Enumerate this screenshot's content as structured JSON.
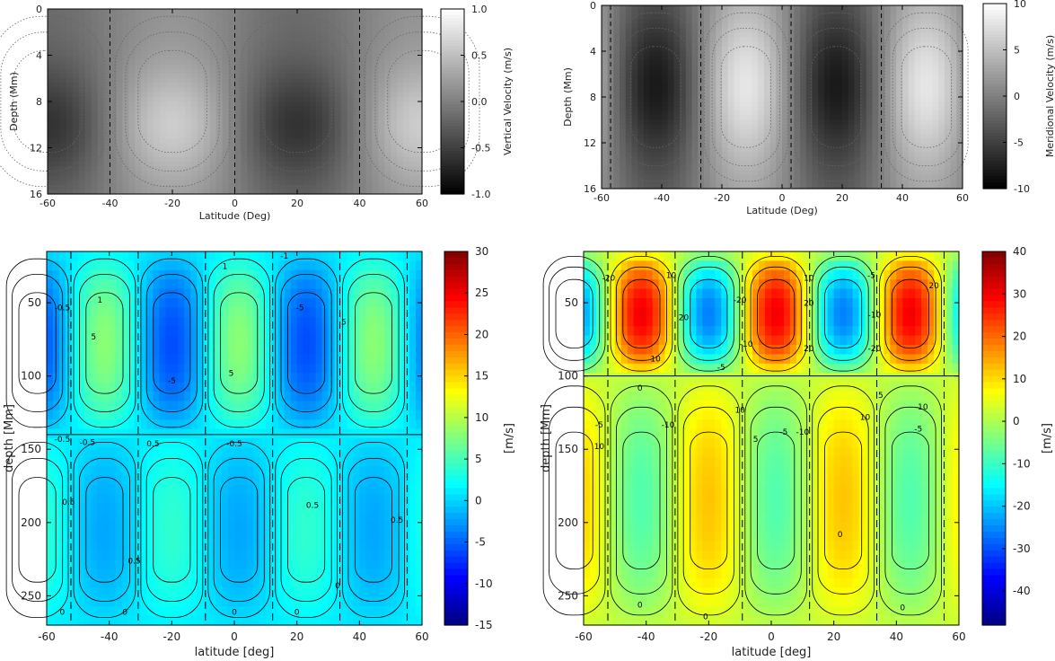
{
  "chart_data": [
    {
      "id": "A",
      "type": "heatmap",
      "colormap": "grayscale",
      "xlabel": "Latitude (Deg)",
      "ylabel": "Depth (Mm)",
      "xlim": [
        -60,
        60
      ],
      "ylim": [
        0,
        16
      ],
      "y_inverted": true,
      "xticks": [
        "-60",
        "-40",
        "-20",
        "0",
        "20",
        "40",
        "60"
      ],
      "yticks": [
        "0",
        "4",
        "8",
        "12",
        "16"
      ],
      "colorbar": {
        "label": "Vertical Velocity (m/s)",
        "range": [
          -1.0,
          1.0
        ],
        "ticks": [
          "1.0",
          "0.5",
          "0.0",
          "-0.5",
          "-1.0"
        ]
      },
      "field": {
        "lat_period": 40,
        "lat_phase": -20,
        "depth_peak": 10,
        "depth_width": 5,
        "amplitude": 0.6
      },
      "contour_labels": []
    },
    {
      "id": "B",
      "type": "heatmap",
      "colormap": "grayscale",
      "xlabel": "Latitude (Deg)",
      "ylabel": "Depth (Mm)",
      "xlim": [
        -60,
        60
      ],
      "ylim": [
        0,
        16
      ],
      "y_inverted": true,
      "xticks": [
        "-60",
        "-40",
        "-20",
        "0",
        "20",
        "40",
        "60"
      ],
      "yticks": [
        "0",
        "4",
        "8",
        "12",
        "16"
      ],
      "colorbar": {
        "label": "Meridional Velocity (m/s)",
        "range": [
          -10,
          10
        ],
        "ticks": [
          "10",
          "5",
          "0",
          "-5",
          "-10"
        ]
      },
      "field": {
        "lat_period": 30,
        "lat_phase": -12,
        "depth_peak": 7,
        "depth_width": 7,
        "amplitude": 8
      },
      "contour_labels": []
    },
    {
      "id": "C",
      "type": "heatmap",
      "colormap": "jet",
      "xlabel": "latitude [deg]",
      "ylabel": "depth [Mm]",
      "xlim": [
        -60,
        60
      ],
      "ylim": [
        15,
        270
      ],
      "y_inverted": true,
      "xticks": [
        "-60",
        "-40",
        "-20",
        "0",
        "20",
        "40",
        "60"
      ],
      "yticks": [
        "50",
        "100",
        "150",
        "200",
        "250"
      ],
      "colorbar": {
        "label": "[m/s]",
        "range": [
          -15,
          30
        ],
        "ticks": [
          "30",
          "25",
          "20",
          "15",
          "10",
          "5",
          "0",
          "-5",
          "-10",
          "-15"
        ]
      },
      "field": {
        "lat_period": 21.5,
        "lat_phase": -20,
        "depth_split": 140,
        "upper_amp": 7,
        "lower_amp": 3,
        "offset": 1
      },
      "contour_labels": [
        {
          "lon": -43,
          "depth": 50,
          "text": "1"
        },
        {
          "lon": -3,
          "depth": 27,
          "text": "1"
        },
        {
          "lon": -45,
          "depth": 75,
          "text": "5"
        },
        {
          "lon": -1,
          "depth": 100,
          "text": "5"
        },
        {
          "lon": 35,
          "depth": 65,
          "text": "5"
        },
        {
          "lon": -20,
          "depth": 105,
          "text": "-5"
        },
        {
          "lon": 21,
          "depth": 55,
          "text": "-5"
        },
        {
          "lon": -55,
          "depth": 55,
          "text": "-0.5"
        },
        {
          "lon": 16,
          "depth": 20,
          "text": "-1"
        },
        {
          "lon": -55,
          "depth": 145,
          "text": "-0.5"
        },
        {
          "lon": -47,
          "depth": 147,
          "text": "-0.5"
        },
        {
          "lon": -26,
          "depth": 148,
          "text": "0.5"
        },
        {
          "lon": 0,
          "depth": 148,
          "text": "-0.5"
        },
        {
          "lon": 25,
          "depth": 190,
          "text": "0.5"
        },
        {
          "lon": 52,
          "depth": 200,
          "text": "0.5"
        },
        {
          "lon": -32,
          "depth": 228,
          "text": "0.5"
        },
        {
          "lon": -53,
          "depth": 188,
          "text": "0.5"
        },
        {
          "lon": 33,
          "depth": 245,
          "text": "0"
        },
        {
          "lon": -55,
          "depth": 263,
          "text": "0"
        },
        {
          "lon": -35,
          "depth": 263,
          "text": "0"
        },
        {
          "lon": 0,
          "depth": 263,
          "text": "0"
        },
        {
          "lon": 20,
          "depth": 263,
          "text": "0"
        }
      ]
    },
    {
      "id": "D",
      "type": "heatmap",
      "colormap": "jet",
      "xlabel": "latitude [deg]",
      "ylabel": "depth [Mm]",
      "xlim": [
        -60,
        60
      ],
      "ylim": [
        15,
        270
      ],
      "y_inverted": true,
      "xticks": [
        "-60",
        "-40",
        "-20",
        "0",
        "20",
        "40",
        "60"
      ],
      "yticks": [
        "50",
        "100",
        "150",
        "200",
        "250"
      ],
      "colorbar": {
        "label": "[m/s]",
        "range": [
          -48,
          40
        ],
        "ticks": [
          "40",
          "30",
          "20",
          "10",
          "0",
          "-10",
          "-20",
          "-30",
          "-40"
        ]
      },
      "field": {
        "lat_period": 21.5,
        "lat_phase": -20,
        "depth_split": 100,
        "upper_amp": 28,
        "lower_amp": 10,
        "offset": 2
      },
      "contour_labels": [
        {
          "lon": -52,
          "depth": 35,
          "text": "-20"
        },
        {
          "lon": -32,
          "depth": 33,
          "text": "10"
        },
        {
          "lon": -28,
          "depth": 62,
          "text": "20"
        },
        {
          "lon": -10,
          "depth": 50,
          "text": "-20"
        },
        {
          "lon": -8,
          "depth": 80,
          "text": "-10"
        },
        {
          "lon": -16,
          "depth": 96,
          "text": "-5"
        },
        {
          "lon": 12,
          "depth": 35,
          "text": "10"
        },
        {
          "lon": 12,
          "depth": 52,
          "text": "20"
        },
        {
          "lon": 12,
          "depth": 83,
          "text": "20"
        },
        {
          "lon": 32,
          "depth": 33,
          "text": "-5"
        },
        {
          "lon": 33,
          "depth": 60,
          "text": "-10"
        },
        {
          "lon": 33,
          "depth": 83,
          "text": "-20"
        },
        {
          "lon": 52,
          "depth": 40,
          "text": "20"
        },
        {
          "lon": -37,
          "depth": 90,
          "text": "10"
        },
        {
          "lon": -55,
          "depth": 135,
          "text": "-5"
        },
        {
          "lon": -55,
          "depth": 150,
          "text": "10"
        },
        {
          "lon": -33,
          "depth": 135,
          "text": "-10"
        },
        {
          "lon": -10,
          "depth": 125,
          "text": "10"
        },
        {
          "lon": -5,
          "depth": 145,
          "text": "5"
        },
        {
          "lon": 4,
          "depth": 140,
          "text": "-5"
        },
        {
          "lon": 10,
          "depth": 140,
          "text": "-10"
        },
        {
          "lon": 30,
          "depth": 130,
          "text": "10"
        },
        {
          "lon": 35,
          "depth": 115,
          "text": "5"
        },
        {
          "lon": 48,
          "depth": 123,
          "text": "-10"
        },
        {
          "lon": 47,
          "depth": 138,
          "text": "-5"
        },
        {
          "lon": -42,
          "depth": 110,
          "text": "0"
        },
        {
          "lon": 22,
          "depth": 210,
          "text": "0"
        },
        {
          "lon": 42,
          "depth": 260,
          "text": "0"
        },
        {
          "lon": -42,
          "depth": 258,
          "text": "0"
        },
        {
          "lon": -21,
          "depth": 266,
          "text": "0"
        }
      ]
    }
  ]
}
